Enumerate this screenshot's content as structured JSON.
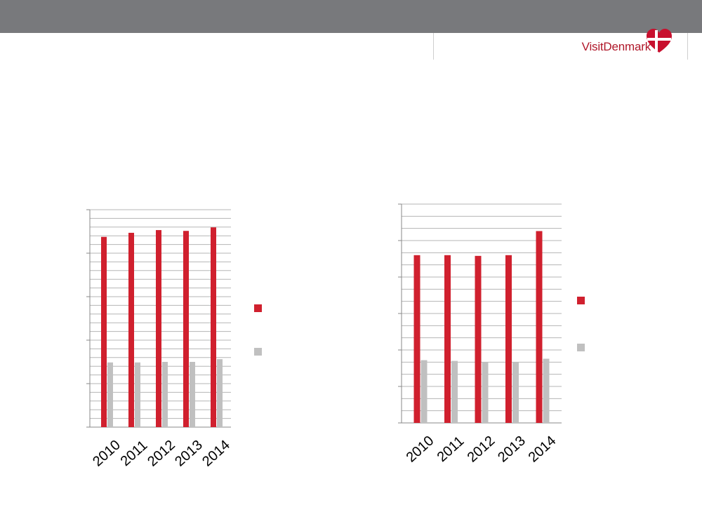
{
  "brand": {
    "name": "VisitDenmark",
    "colors": {
      "header_bar": "#78797c",
      "brand_red": "#c8102e"
    }
  },
  "chart_data": [
    {
      "type": "bar",
      "categories": [
        "2010",
        "2011",
        "2012",
        "2013",
        "2014"
      ],
      "series": [
        {
          "color": "#d0202e",
          "values": [
            7.0,
            7.15,
            7.25,
            7.22,
            7.35
          ]
        },
        {
          "color": "#c0c0c0",
          "values": [
            2.38,
            2.38,
            2.4,
            2.4,
            2.5
          ]
        }
      ],
      "ylim": [
        0,
        8
      ],
      "grid_lines": 25,
      "grid": true,
      "legend": "right",
      "title": "",
      "xlabel": "",
      "ylabel": ""
    },
    {
      "type": "bar",
      "categories": [
        "2010",
        "2011",
        "2012",
        "2013",
        "2014"
      ],
      "series": [
        {
          "color": "#d0202e",
          "values": [
            2.3,
            2.3,
            2.29,
            2.3,
            2.63
          ]
        },
        {
          "color": "#c0c0c0",
          "values": [
            0.86,
            0.85,
            0.83,
            0.83,
            0.88
          ]
        }
      ],
      "ylim": [
        0,
        3
      ],
      "grid_lines": 18,
      "grid": true,
      "legend": "right",
      "title": "",
      "xlabel": "",
      "ylabel": ""
    }
  ]
}
